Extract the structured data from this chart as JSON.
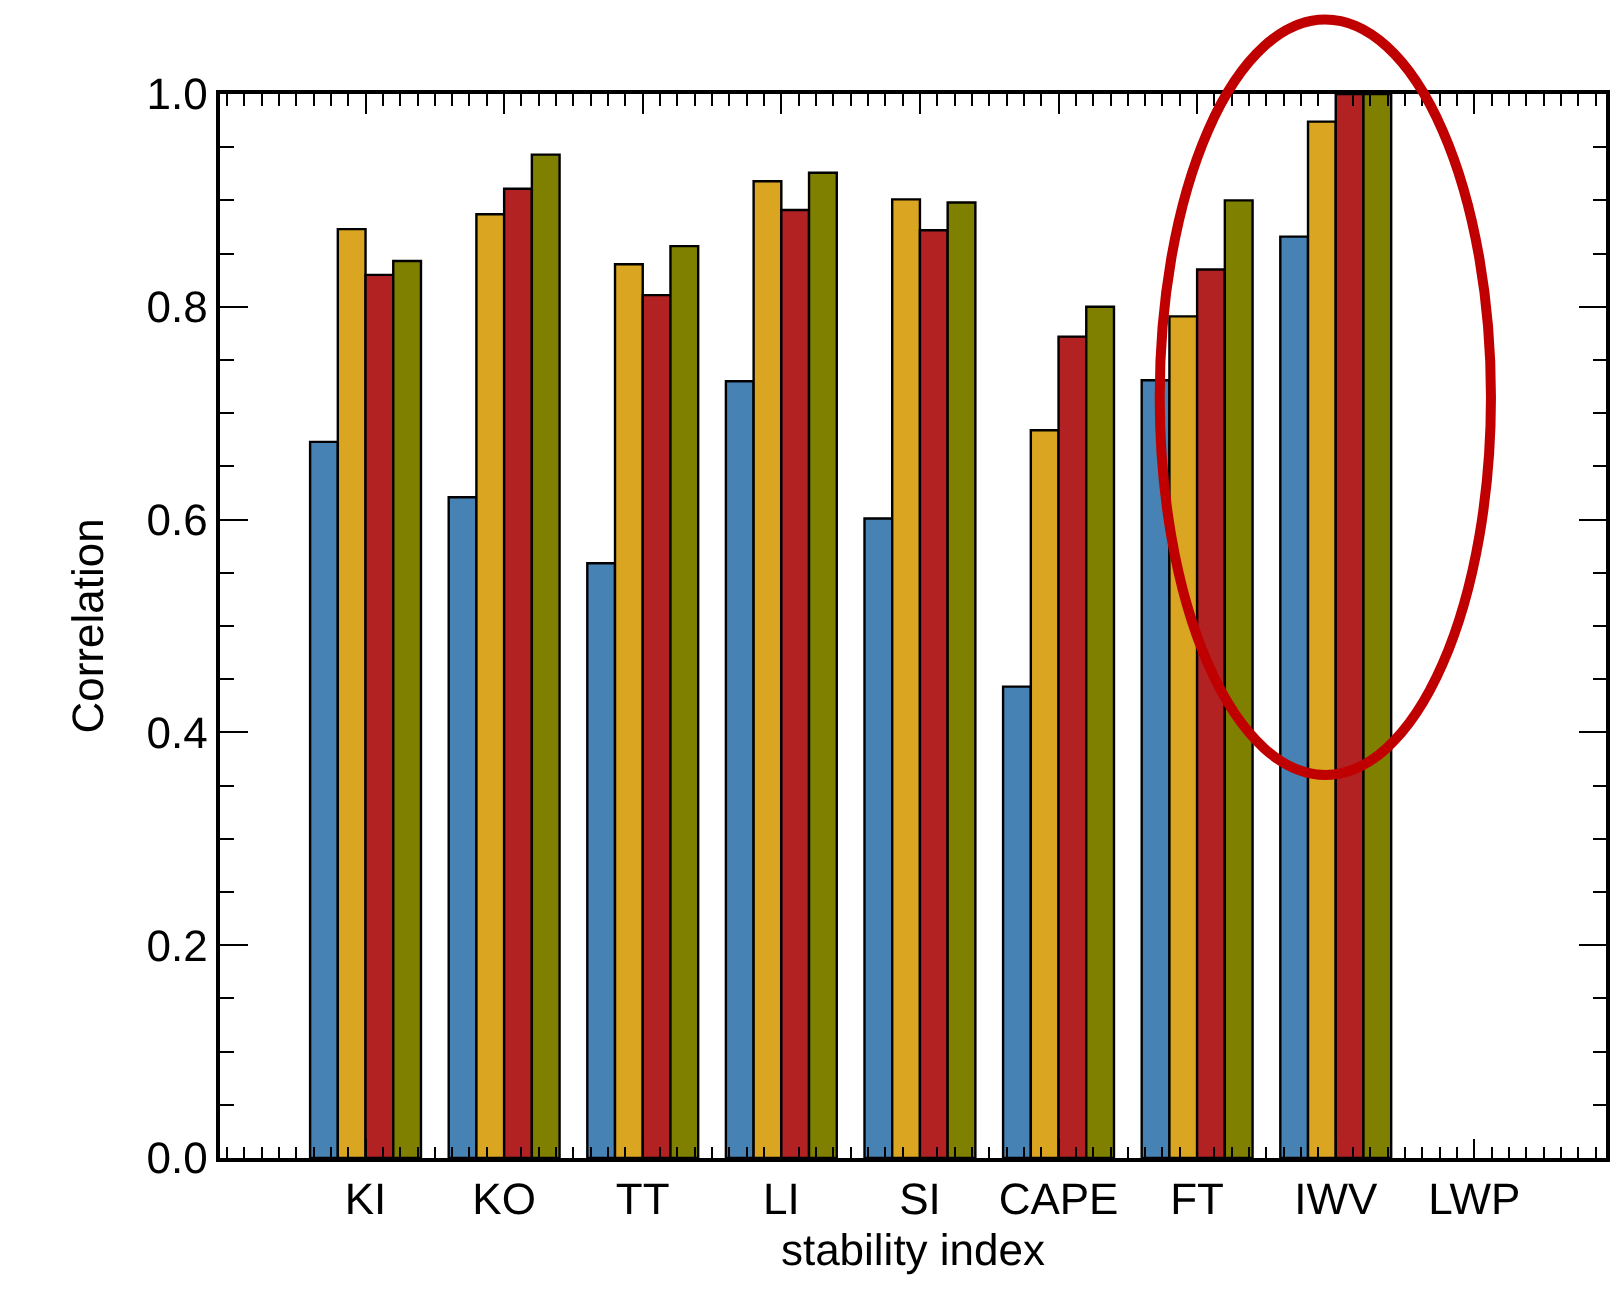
{
  "chart_data": {
    "type": "bar",
    "xlabel": "stability index",
    "ylabel": "Correlation",
    "categories": [
      "KI",
      "KO",
      "TT",
      "LI",
      "SI",
      "CAPE",
      "FT",
      "IWV",
      "LWP"
    ],
    "series": [
      {
        "color": "#4682b4",
        "values": [
          0.673,
          0.621,
          0.559,
          0.73,
          0.601,
          0.443,
          0.731,
          0.866,
          null
        ]
      },
      {
        "color": "#daa520",
        "values": [
          0.873,
          0.887,
          0.84,
          0.918,
          0.901,
          0.684,
          0.791,
          0.974,
          null
        ]
      },
      {
        "color": "#b22222",
        "values": [
          0.83,
          0.911,
          0.811,
          0.891,
          0.872,
          0.772,
          0.835,
          1.0,
          null
        ]
      },
      {
        "color": "#808000",
        "values": [
          0.843,
          0.943,
          0.857,
          0.926,
          0.898,
          0.8,
          0.9,
          1.0,
          null
        ]
      }
    ],
    "ylim": [
      0,
      1
    ],
    "yticks": [
      {
        "value": 0,
        "label": "0.0"
      },
      {
        "value": 0.2,
        "label": "0.2"
      },
      {
        "value": 0.4,
        "label": "0.4"
      },
      {
        "value": 0.6,
        "label": "0.6"
      },
      {
        "value": 0.8,
        "label": "0.8"
      },
      {
        "value": 1,
        "label": "1.0"
      }
    ]
  }
}
